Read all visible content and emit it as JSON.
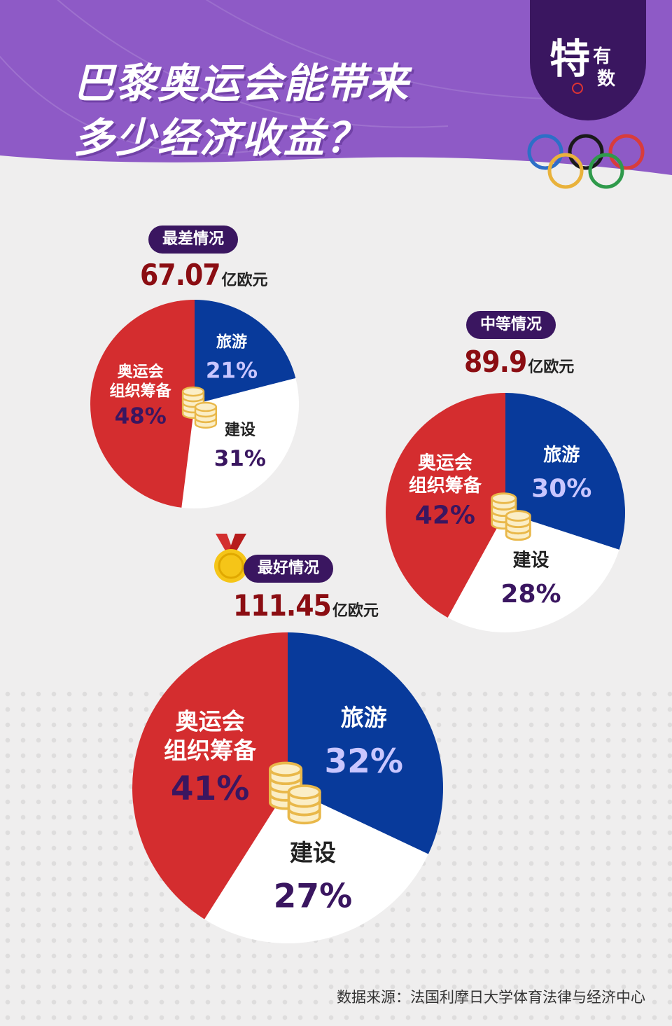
{
  "title_line1": "巴黎奥运会能带来",
  "title_line2": "多少经济收益？",
  "logo": {
    "big": "特",
    "small1": "有",
    "small2": "数"
  },
  "colors": {
    "banner": "#8e5ac6",
    "dark_purple": "#3a1660",
    "red": "#d42d2f",
    "blue": "#083a9b",
    "white": "#ffffff",
    "amount": "#8b0d12"
  },
  "chart_data": [
    {
      "type": "pie",
      "title": "最差情况",
      "total": "67.07",
      "unit": "亿欧元",
      "slices": [
        {
          "label": "旅游",
          "value": 21,
          "pct": "21%",
          "color": "#083a9b"
        },
        {
          "label": "建设",
          "value": 31,
          "pct": "31%",
          "color": "#ffffff"
        },
        {
          "label": "奥运会组织筹备",
          "line1": "奥运会",
          "line2": "组织筹备",
          "value": 48,
          "pct": "48%",
          "color": "#d42d2f"
        }
      ]
    },
    {
      "type": "pie",
      "title": "中等情况",
      "total": "89.9",
      "unit": "亿欧元",
      "slices": [
        {
          "label": "旅游",
          "value": 30,
          "pct": "30%",
          "color": "#083a9b"
        },
        {
          "label": "建设",
          "value": 28,
          "pct": "28%",
          "color": "#ffffff"
        },
        {
          "label": "奥运会组织筹备",
          "line1": "奥运会",
          "line2": "组织筹备",
          "value": 42,
          "pct": "42%",
          "color": "#d42d2f"
        }
      ]
    },
    {
      "type": "pie",
      "title": "最好情况",
      "total": "111.45",
      "unit": "亿欧元",
      "slices": [
        {
          "label": "旅游",
          "value": 32,
          "pct": "32%",
          "color": "#083a9b"
        },
        {
          "label": "建设",
          "value": 27,
          "pct": "27%",
          "color": "#ffffff"
        },
        {
          "label": "奥运会组织筹备",
          "line1": "奥运会",
          "line2": "组织筹备",
          "value": 41,
          "pct": "41%",
          "color": "#d42d2f"
        }
      ]
    }
  ],
  "source": "数据来源：法国利摩日大学体育法律与经济中心"
}
